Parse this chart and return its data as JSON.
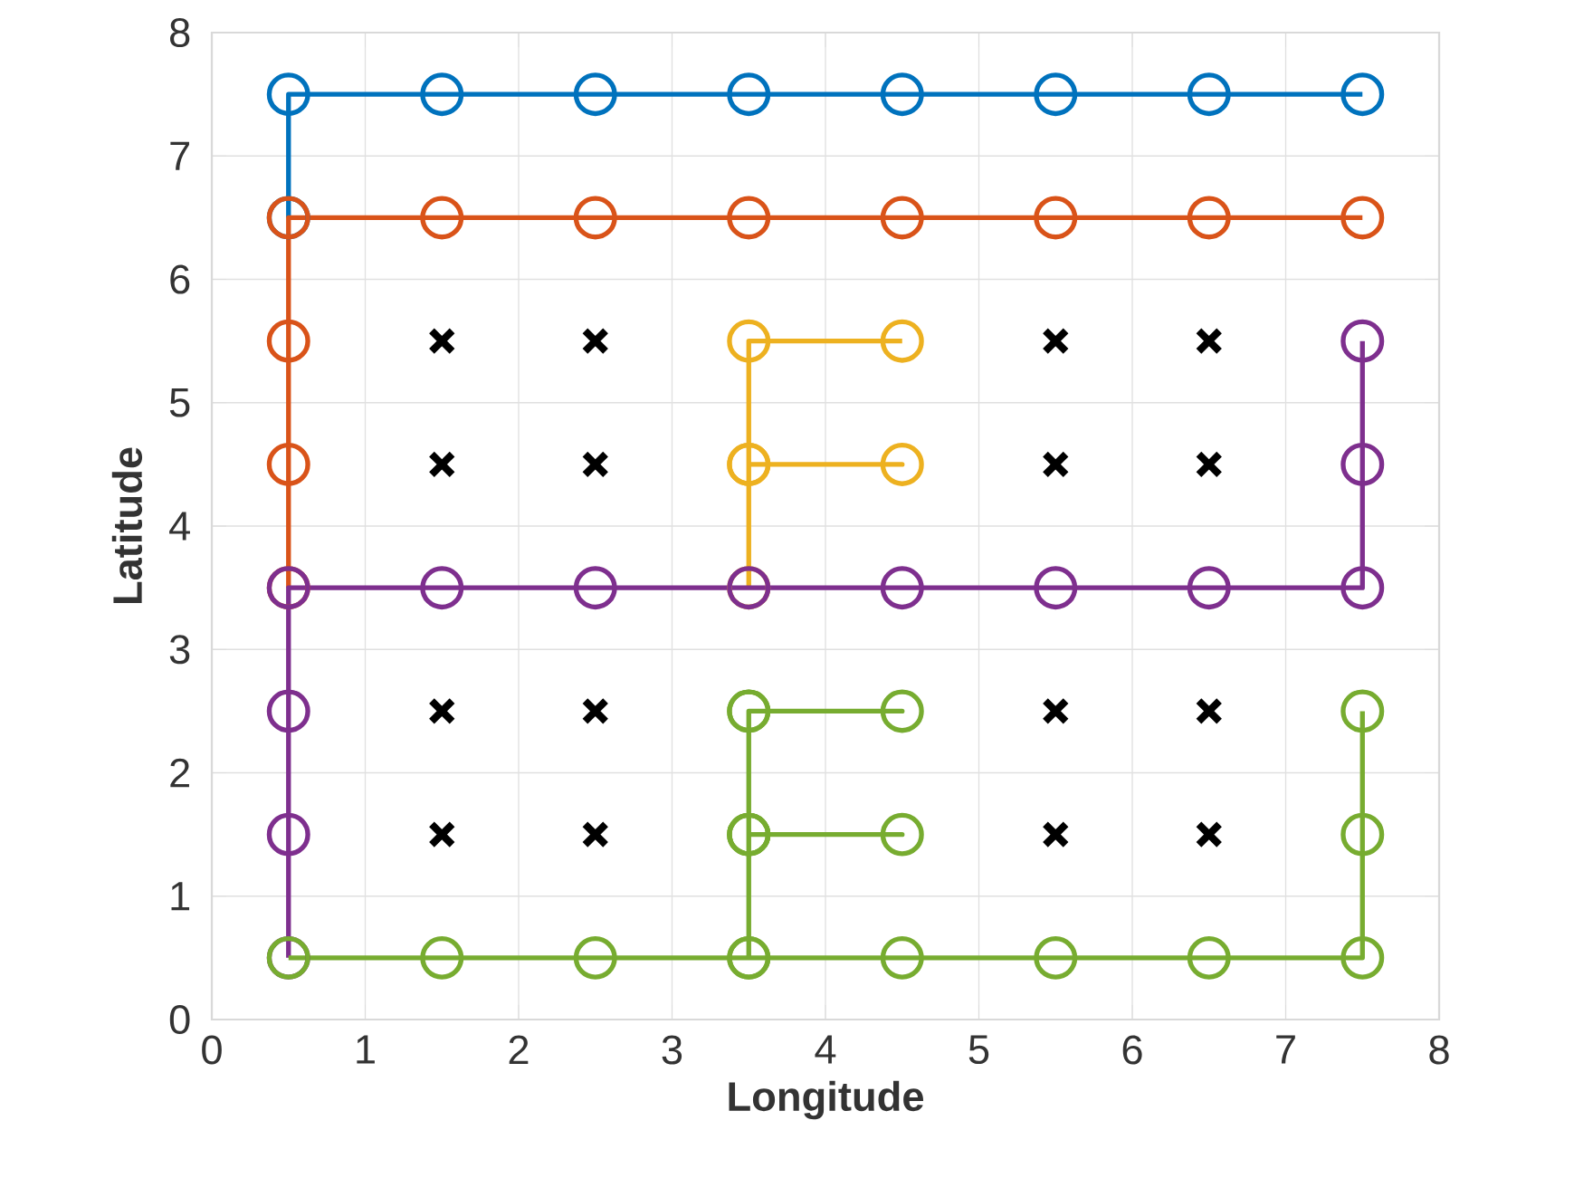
{
  "chart_data": {
    "type": "line",
    "xlabel": "Longitude",
    "ylabel": "Latitude",
    "xlim": [
      0,
      8
    ],
    "ylim": [
      0,
      8
    ],
    "xticks": [
      0,
      1,
      2,
      3,
      4,
      5,
      6,
      7,
      8
    ],
    "yticks": [
      0,
      1,
      2,
      3,
      4,
      5,
      6,
      7,
      8
    ],
    "grid": true,
    "series": [
      {
        "marker": "circle",
        "color": "#0072bd",
        "x": [
          0.5,
          0.5,
          1.5,
          2.5,
          3.5,
          4.5,
          5.5,
          6.5,
          7.5
        ],
        "values": [
          6.5,
          7.5,
          7.5,
          7.5,
          7.5,
          7.5,
          7.5,
          7.5,
          7.5
        ]
      },
      {
        "marker": "circle",
        "color": "#d95319",
        "x": [
          0.5,
          0.5,
          0.5,
          0.5,
          1.5,
          2.5,
          3.5,
          4.5,
          5.5,
          6.5,
          7.5
        ],
        "values": [
          3.5,
          4.5,
          5.5,
          6.5,
          6.5,
          6.5,
          6.5,
          6.5,
          6.5,
          6.5,
          6.5
        ]
      },
      {
        "marker": "circle",
        "color": "#edb120",
        "x": [
          3.5,
          3.5,
          4.5,
          3.5,
          3.5,
          4.5
        ],
        "values": [
          3.5,
          4.5,
          4.5,
          4.5,
          5.5,
          5.5
        ]
      },
      {
        "marker": "circle",
        "color": "#7e2f8e",
        "x": [
          0.5,
          0.5,
          0.5,
          0.5,
          1.5,
          2.5,
          3.5,
          4.5,
          5.5,
          6.5,
          7.5,
          7.5,
          7.5
        ],
        "values": [
          0.5,
          1.5,
          2.5,
          3.5,
          3.5,
          3.5,
          3.5,
          3.5,
          3.5,
          3.5,
          3.5,
          4.5,
          5.5
        ]
      },
      {
        "marker": "circle",
        "color": "#77ac30",
        "x": [
          0.5,
          1.5,
          2.5,
          3.5,
          3.5,
          4.5,
          3.5,
          3.5,
          4.5,
          3.5,
          3.5,
          3.5,
          4.5,
          5.5,
          6.5,
          7.5,
          7.5,
          7.5
        ],
        "values": [
          0.5,
          0.5,
          0.5,
          0.5,
          1.5,
          1.5,
          1.5,
          2.5,
          2.5,
          2.5,
          1.5,
          0.5,
          0.5,
          0.5,
          0.5,
          0.5,
          1.5,
          2.5
        ]
      },
      {
        "type": "scatter",
        "marker": "cross",
        "color": "#000000",
        "x": [
          1.5,
          2.5,
          5.5,
          6.5,
          1.5,
          2.5,
          5.5,
          6.5,
          1.5,
          2.5,
          5.5,
          6.5,
          1.5,
          2.5,
          5.5,
          6.5
        ],
        "values": [
          1.5,
          1.5,
          1.5,
          1.5,
          2.5,
          2.5,
          2.5,
          2.5,
          4.5,
          4.5,
          4.5,
          4.5,
          5.5,
          5.5,
          5.5,
          5.5
        ]
      }
    ]
  }
}
